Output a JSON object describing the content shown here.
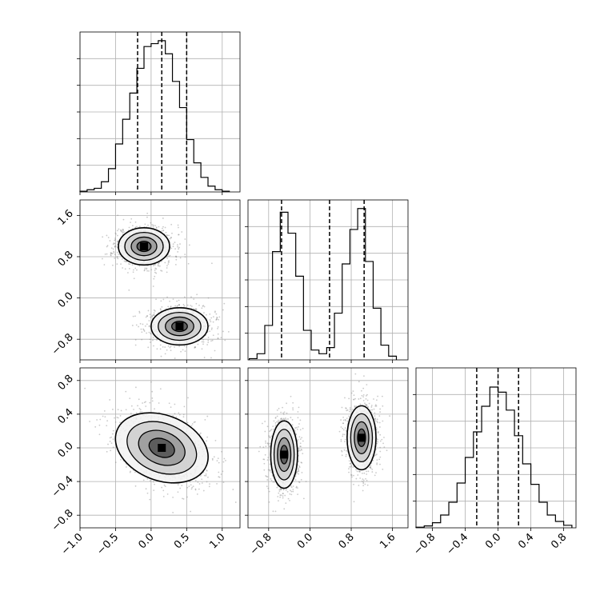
{
  "figure": {
    "type": "corner plot",
    "grid": true,
    "quantile_line_style": "dashed black"
  },
  "chart_data": [
    {
      "panel": "hist-param-1",
      "type": "bar",
      "x": [
        -0.95,
        -0.85,
        -0.75,
        -0.65,
        -0.55,
        -0.45,
        -0.35,
        -0.25,
        -0.15,
        -0.05,
        0.05,
        0.15,
        0.25,
        0.35,
        0.45,
        0.55,
        0.65,
        0.75,
        0.85,
        0.95,
        1.05
      ],
      "values": [
        0.5,
        1.5,
        2.5,
        7,
        16,
        33,
        50,
        68,
        85,
        100,
        102,
        104,
        95,
        76,
        58,
        36,
        20,
        10,
        4,
        1.5,
        0.5
      ],
      "xlim": [
        -1.0,
        1.25
      ],
      "ylim": [
        0,
        110
      ],
      "quantile_lines": [
        -0.19,
        0.15,
        0.5
      ]
    },
    {
      "panel": "hist-param-2",
      "type": "bar",
      "x": [
        -1.1,
        -0.95,
        -0.8,
        -0.65,
        -0.5,
        -0.35,
        -0.2,
        -0.05,
        0.1,
        0.25,
        0.4,
        0.55,
        0.7,
        0.85,
        1.0,
        1.15,
        1.3,
        1.45,
        1.6
      ],
      "values": [
        1,
        5,
        28,
        88,
        120,
        103,
        68,
        24,
        8,
        5,
        10,
        38,
        78,
        106,
        123,
        80,
        42,
        12,
        3
      ],
      "xlim": [
        -1.2,
        1.9
      ],
      "ylim": [
        0,
        130
      ],
      "quantile_lines": [
        -0.55,
        0.38,
        1.05
      ]
    },
    {
      "panel": "hist-param-3",
      "type": "bar",
      "x": [
        -0.95,
        -0.85,
        -0.75,
        -0.65,
        -0.55,
        -0.45,
        -0.35,
        -0.25,
        -0.15,
        -0.05,
        0.05,
        0.15,
        0.25,
        0.35,
        0.45,
        0.55,
        0.65,
        0.75,
        0.85
      ],
      "values": [
        0.5,
        1.5,
        4,
        10,
        20,
        35,
        55,
        75,
        95,
        110,
        106,
        92,
        72,
        50,
        34,
        20,
        10,
        5,
        2
      ],
      "xlim": [
        -1.0,
        0.95
      ],
      "ylim": [
        0,
        125
      ],
      "quantile_lines": [
        -0.26,
        0.0,
        0.25
      ]
    },
    {
      "panel": "scatter-param-1-vs-param-2",
      "type": "scatter",
      "xlim": [
        -1.0,
        1.25
      ],
      "ylim": [
        -1.2,
        1.9
      ],
      "clusters": [
        {
          "cx": -0.1,
          "cy": 1.0,
          "sx": 0.18,
          "sy": 0.18,
          "rho": 0.0
        },
        {
          "cx": 0.4,
          "cy": -0.55,
          "sx": 0.2,
          "sy": 0.18,
          "rho": 0.0
        }
      ]
    },
    {
      "panel": "scatter-param-1-vs-param-3",
      "type": "scatter",
      "xlim": [
        -1.0,
        1.25
      ],
      "ylim": [
        -0.95,
        0.95
      ],
      "clusters": [
        {
          "cx": 0.15,
          "cy": 0.0,
          "sx": 0.3,
          "sy": 0.22,
          "rho": -0.45
        }
      ]
    },
    {
      "panel": "scatter-param-2-vs-param-3",
      "type": "scatter",
      "xlim": [
        -1.2,
        1.9
      ],
      "ylim": [
        -0.95,
        0.95
      ],
      "clusters": [
        {
          "cx": -0.5,
          "cy": -0.08,
          "sx": 0.13,
          "sy": 0.2,
          "rho": 0.0
        },
        {
          "cx": 1.0,
          "cy": 0.12,
          "sx": 0.14,
          "sy": 0.19,
          "rho": 0.0
        }
      ]
    }
  ],
  "ticks": {
    "param_1": {
      "values": [
        -1.0,
        -0.5,
        0.0,
        0.5,
        1.0
      ],
      "labels": [
        "−1.0",
        "−0.5",
        "0.0",
        "0.5",
        "1.0"
      ]
    },
    "param_2": {
      "values": [
        -0.8,
        0.0,
        0.8,
        1.6
      ],
      "labels": [
        "−0.8",
        "0.0",
        "0.8",
        "1.6"
      ]
    },
    "param_3": {
      "values": [
        -0.8,
        -0.4,
        0.0,
        0.4,
        0.8
      ],
      "labels": [
        "−0.8",
        "−0.4",
        "0.0",
        "0.4",
        "0.8"
      ]
    }
  }
}
